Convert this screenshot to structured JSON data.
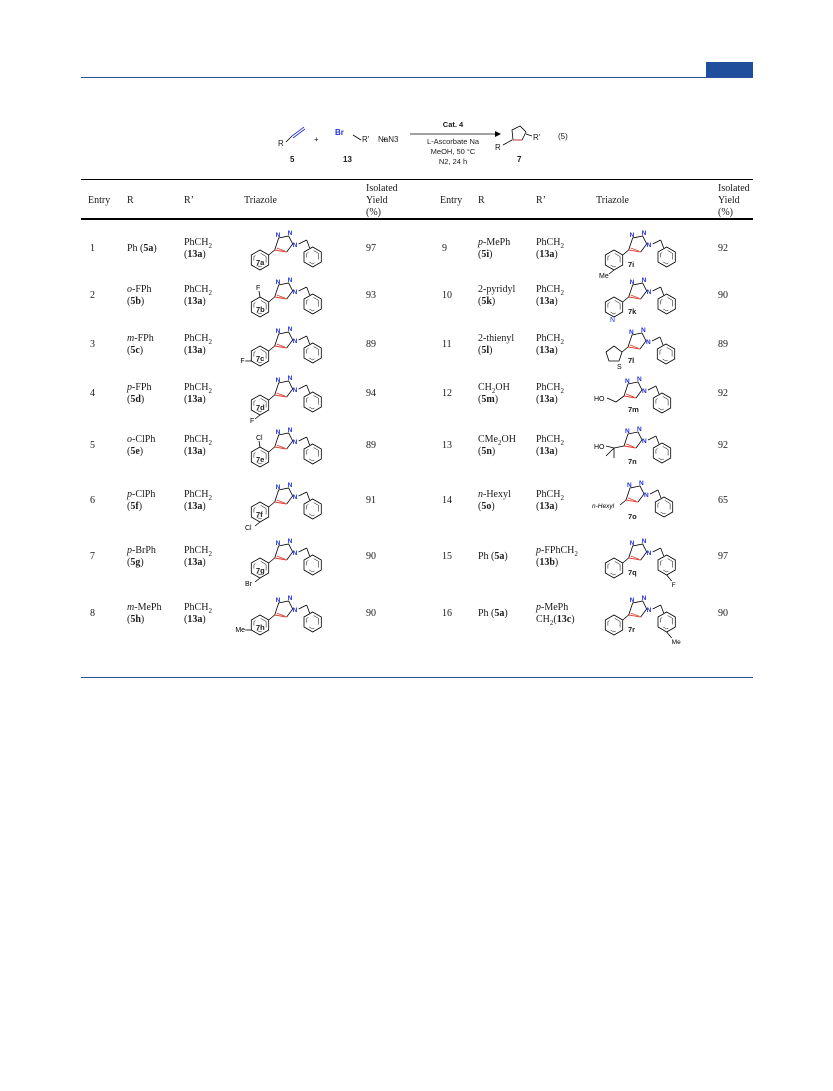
{
  "scheme": {
    "reagent1_label": "R",
    "reagent1_number": "5",
    "plus1": "+",
    "reagent2_br": "Br",
    "reagent2_r": "R'",
    "reagent2_number": "13",
    "plus2": "+",
    "reagent3": "NaN3",
    "catalyst": "Cat. 4",
    "condition1": "L-Ascorbate Na",
    "condition2": "MeOH, 50 °C",
    "condition3": "N2, 24 h",
    "product_r": "R",
    "product_r2": "R'",
    "product_number": "7",
    "equation_number": "(5)"
  },
  "headers": {
    "entry": "Entry",
    "r": "R",
    "r_prime": "R’",
    "triazole": "Triazole",
    "yield_line1": "Isolated",
    "yield_line2": "Yield",
    "yield_line3": "(%)"
  },
  "left_rows": [
    {
      "entry": "1",
      "r1": "Ph (5a)",
      "r2": "",
      "rp1": "PhCH2",
      "rp2": "(13a)",
      "substituent": "none",
      "sub_text": "",
      "compound": "7a",
      "yield": "97"
    },
    {
      "entry": "2",
      "r1": "o-FPh",
      "r2": "(5b)",
      "rp1": "PhCH2",
      "rp2": "(13a)",
      "substituent": "ortho",
      "sub_text": "F",
      "compound": "7b",
      "yield": "93"
    },
    {
      "entry": "3",
      "r1": "m-FPh",
      "r2": "(5c)",
      "rp1": "PhCH2",
      "rp2": "(13a)",
      "substituent": "meta",
      "sub_text": "F",
      "compound": "7c",
      "yield": "89"
    },
    {
      "entry": "4",
      "r1": "p-FPh",
      "r2": "(5d)",
      "rp1": "PhCH2",
      "rp2": "(13a)",
      "substituent": "para",
      "sub_text": "F",
      "compound": "7d",
      "yield": "94"
    },
    {
      "entry": "5",
      "r1": "o-ClPh",
      "r2": "(5e)",
      "rp1": "PhCH2",
      "rp2": "(13a)",
      "substituent": "ortho",
      "sub_text": "Cl",
      "compound": "7e",
      "yield": "89"
    },
    {
      "entry": "6",
      "r1": "p-ClPh",
      "r2": "(5f)",
      "rp1": "PhCH2",
      "rp2": "(13a)",
      "substituent": "para",
      "sub_text": "Cl",
      "compound": "7f",
      "yield": "91"
    },
    {
      "entry": "7",
      "r1": "p-BrPh",
      "r2": "(5g)",
      "rp1": "PhCH2",
      "rp2": "(13a)",
      "substituent": "para",
      "sub_text": "Br",
      "compound": "7g",
      "yield": "90"
    },
    {
      "entry": "8",
      "r1": "m-MePh",
      "r2": "(5h)",
      "rp1": "PhCH2",
      "rp2": "(13a)",
      "substituent": "meta",
      "sub_text": "Me",
      "compound": "7h",
      "yield": "90"
    }
  ],
  "right_rows": [
    {
      "entry": "9",
      "r1": "p-MePh",
      "r2": "(5i)",
      "rp1": "PhCH2",
      "rp2": "(13a)",
      "kind": "para-aryl",
      "sub_text": "Me",
      "compound": "7i",
      "yield": "92"
    },
    {
      "entry": "10",
      "r1": "2-pyridyl",
      "r2": "(5k)",
      "rp1": "PhCH2",
      "rp2": "(13a)",
      "kind": "pyridyl",
      "sub_text": "N",
      "compound": "7k",
      "yield": "90"
    },
    {
      "entry": "11",
      "r1": "2-thienyl",
      "r2": "(5l)",
      "rp1": "PhCH2",
      "rp2": "(13a)",
      "kind": "thienyl",
      "sub_text": "S",
      "compound": "7l",
      "yield": "89"
    },
    {
      "entry": "12",
      "r1": "CH2OH",
      "r2": "(5m)",
      "rp1": "PhCH2",
      "rp2": "(13a)",
      "kind": "ch2oh",
      "sub_text": "HO",
      "compound": "7m",
      "yield": "92"
    },
    {
      "entry": "13",
      "r1": "CMe2OH",
      "r2": "(5n)",
      "rp1": "PhCH2",
      "rp2": "(13a)",
      "kind": "cme2oh",
      "sub_text": "HO",
      "compound": "7n",
      "yield": "92"
    },
    {
      "entry": "14",
      "r1": "n-Hexyl",
      "r2": "(5o)",
      "rp1": "PhCH2",
      "rp2": "(13a)",
      "kind": "hexyl",
      "sub_text": "n-Hexyl",
      "compound": "7o",
      "yield": "65"
    },
    {
      "entry": "15",
      "r1": "Ph (5a)",
      "r2": "",
      "rp1": "p-FPhCH2",
      "rp2": "(13b)",
      "kind": "benzyl-f",
      "sub_text": "F",
      "compound": "7q",
      "yield": "97"
    },
    {
      "entry": "16",
      "r1": "Ph (5a)",
      "r2": "",
      "rp1": "p-MePh",
      "rp2": "CH2(13c)",
      "kind": "benzyl-me",
      "sub_text": "Me",
      "compound": "7r",
      "yield": "90"
    }
  ],
  "colors": {
    "rule": "#2b4f9b",
    "tab": "#1f4e9c",
    "nitrogen": "#1f2fe0",
    "triazole_bond": "#e0392b"
  }
}
